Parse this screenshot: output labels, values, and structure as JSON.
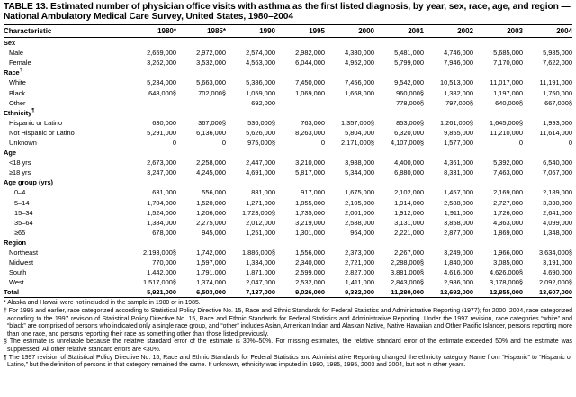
{
  "title": "TABLE 13. Estimated number of physician office visits with asthma as the first listed diagnosis, by year, sex, race, age, and region — National Ambulatory Medical Care Survey, United States, 1980–2004",
  "columns": [
    "Characteristic",
    "1980*",
    "1985*",
    "1990",
    "1995",
    "2000",
    "2001",
    "2002",
    "2003",
    "2004"
  ],
  "rows": [
    {
      "type": "section",
      "label": "Sex"
    },
    {
      "label": "Male",
      "values": [
        "2,659,000",
        "2,972,000",
        "2,574,000",
        "2,982,000",
        "4,380,000",
        "5,481,000",
        "4,746,000",
        "5,685,000",
        "5,985,000"
      ]
    },
    {
      "label": "Female",
      "values": [
        "3,262,000",
        "3,532,000",
        "4,563,000",
        "6,044,000",
        "4,952,000",
        "5,799,000",
        "7,946,000",
        "7,170,000",
        "7,622,000"
      ]
    },
    {
      "type": "section",
      "label": "Race",
      "mark": "†"
    },
    {
      "label": "White",
      "values": [
        "5,234,000",
        "5,663,000",
        "5,386,000",
        "7,450,000",
        "7,456,000",
        "9,542,000",
        "10,513,000",
        "11,017,000",
        "11,191,000"
      ]
    },
    {
      "label": "Black",
      "values": [
        "648,000§",
        "702,000§",
        "1,059,000",
        "1,069,000",
        "1,668,000",
        "960,000§",
        "1,382,000",
        "1,197,000",
        "1,750,000"
      ]
    },
    {
      "label": "Other",
      "values": [
        "—",
        "—",
        "692,000",
        "—",
        "—",
        "778,000§",
        "797,000§",
        "640,000§",
        "667,000§"
      ]
    },
    {
      "type": "section",
      "label": "Ethnicity",
      "mark": "¶"
    },
    {
      "label": "Hispanic or Latino",
      "values": [
        "630,000",
        "367,000§",
        "536,000§",
        "763,000",
        "1,357,000§",
        "853,000§",
        "1,261,000§",
        "1,645,000§",
        "1,993,000"
      ]
    },
    {
      "label": "Not Hispanic or Latino",
      "values": [
        "5,291,000",
        "6,136,000",
        "5,626,000",
        "8,263,000",
        "5,804,000",
        "6,320,000",
        "9,855,000",
        "11,210,000",
        "11,614,000"
      ]
    },
    {
      "label": "Unknown",
      "values": [
        "0",
        "0",
        "975,000§",
        "0",
        "2,171,000§",
        "4,107,000§",
        "1,577,000",
        "0",
        "0"
      ]
    },
    {
      "type": "section",
      "label": "Age"
    },
    {
      "label": "<18 yrs",
      "values": [
        "2,673,000",
        "2,258,000",
        "2,447,000",
        "3,210,000",
        "3,988,000",
        "4,400,000",
        "4,361,000",
        "5,392,000",
        "6,540,000"
      ]
    },
    {
      "label": "≥18 yrs",
      "values": [
        "3,247,000",
        "4,245,000",
        "4,691,000",
        "5,817,000",
        "5,344,000",
        "6,880,000",
        "8,331,000",
        "7,463,000",
        "7,067,000"
      ]
    },
    {
      "type": "section",
      "label": "Age group (yrs)"
    },
    {
      "label": "0–4",
      "indent": true,
      "values": [
        "631,000",
        "556,000",
        "881,000",
        "917,000",
        "1,675,000",
        "2,102,000",
        "1,457,000",
        "2,169,000",
        "2,189,000"
      ]
    },
    {
      "label": "5–14",
      "indent": true,
      "values": [
        "1,704,000",
        "1,520,000",
        "1,271,000",
        "1,855,000",
        "2,105,000",
        "1,914,000",
        "2,588,000",
        "2,727,000",
        "3,330,000"
      ]
    },
    {
      "label": "15–34",
      "indent": true,
      "values": [
        "1,524,000",
        "1,206,000",
        "1,723,000§",
        "1,735,000",
        "2,001,000",
        "1,912,000",
        "1,911,000",
        "1,726,000",
        "2,641,000"
      ]
    },
    {
      "label": "35–64",
      "indent": true,
      "values": [
        "1,384,000",
        "2,275,000",
        "2,012,000",
        "3,219,000",
        "2,588,000",
        "3,131,000",
        "3,858,000",
        "4,363,000",
        "4,099,000"
      ]
    },
    {
      "label": "≥65",
      "indent": true,
      "values": [
        "678,000",
        "945,000",
        "1,251,000",
        "1,301,000",
        "964,000",
        "2,221,000",
        "2,877,000",
        "1,869,000",
        "1,348,000"
      ]
    },
    {
      "type": "section",
      "label": "Region"
    },
    {
      "label": "Northeast",
      "values": [
        "2,193,000§",
        "1,742,000",
        "1,886,000§",
        "1,556,000",
        "2,373,000",
        "2,267,000",
        "3,249,000",
        "1,966,000",
        "3,634,000§"
      ]
    },
    {
      "label": "Midwest",
      "values": [
        "770,000",
        "1,597,000",
        "1,334,000",
        "2,340,000",
        "2,721,000",
        "2,288,000§",
        "1,840,000",
        "3,085,000",
        "3,191,000"
      ]
    },
    {
      "label": "South",
      "values": [
        "1,442,000",
        "1,791,000",
        "1,871,000",
        "2,599,000",
        "2,827,000",
        "3,881,000§",
        "4,616,000",
        "4,626,000§",
        "4,690,000"
      ]
    },
    {
      "label": "West",
      "values": [
        "1,517,000§",
        "1,374,000",
        "2,047,000",
        "2,532,000",
        "1,411,000",
        "2,843,000§",
        "2,986,000",
        "3,178,000§",
        "2,092,000§"
      ]
    },
    {
      "type": "total",
      "label": "Total",
      "values": [
        "5,921,000",
        "6,503,000",
        "7,137,000",
        "9,026,000",
        "9,332,000",
        "11,280,000",
        "12,692,000",
        "12,855,000",
        "13,607,000"
      ]
    }
  ],
  "footnotes": [
    "* Alaska and Hawaii were not included in the sample in 1980 or in 1985.",
    "† For 1995 and earlier, race categorized according to Statistical Policy Directive No. 15, Race and Ethnic Standards for Federal Statistics and Administrative Reporting (1977); for 2000–2004, race categorized according to the 1997 revision of Statistical Policy Directive No. 15, Race and Ethnic Standards for Federal Statistics and Administrative Reporting. Under the 1997 revision, race categories “white” and “black” are comprised of persons who indicated only a single race group, and “other” includes Asian, American Indian and Alaskan Native, Native Hawaiian and Other Pacific Islander, persons reporting more than one race, and persons reporting their race as something other than those listed previously.",
    "§ The estimate is unreliable because the relative standard error of the estimate is 30%–50%. For missing estimates, the relative standard error of the estimate exceeded 50% and the estimate was suppressed. All other relative standard errors are <30%.",
    "¶ The 1997 revision of Statistical Policy Directive No. 15, Race and Ethnic Standards for Federal Statistics and Administrative Reporting changed the ethnicity category Name from “Hispanic” to “Hispanic or Latino,” but the definition of persons in that category remained the same. If unknown, ethnicity was imputed in 1980, 1985, 1995, 2003 and 2004, but not in other years."
  ]
}
